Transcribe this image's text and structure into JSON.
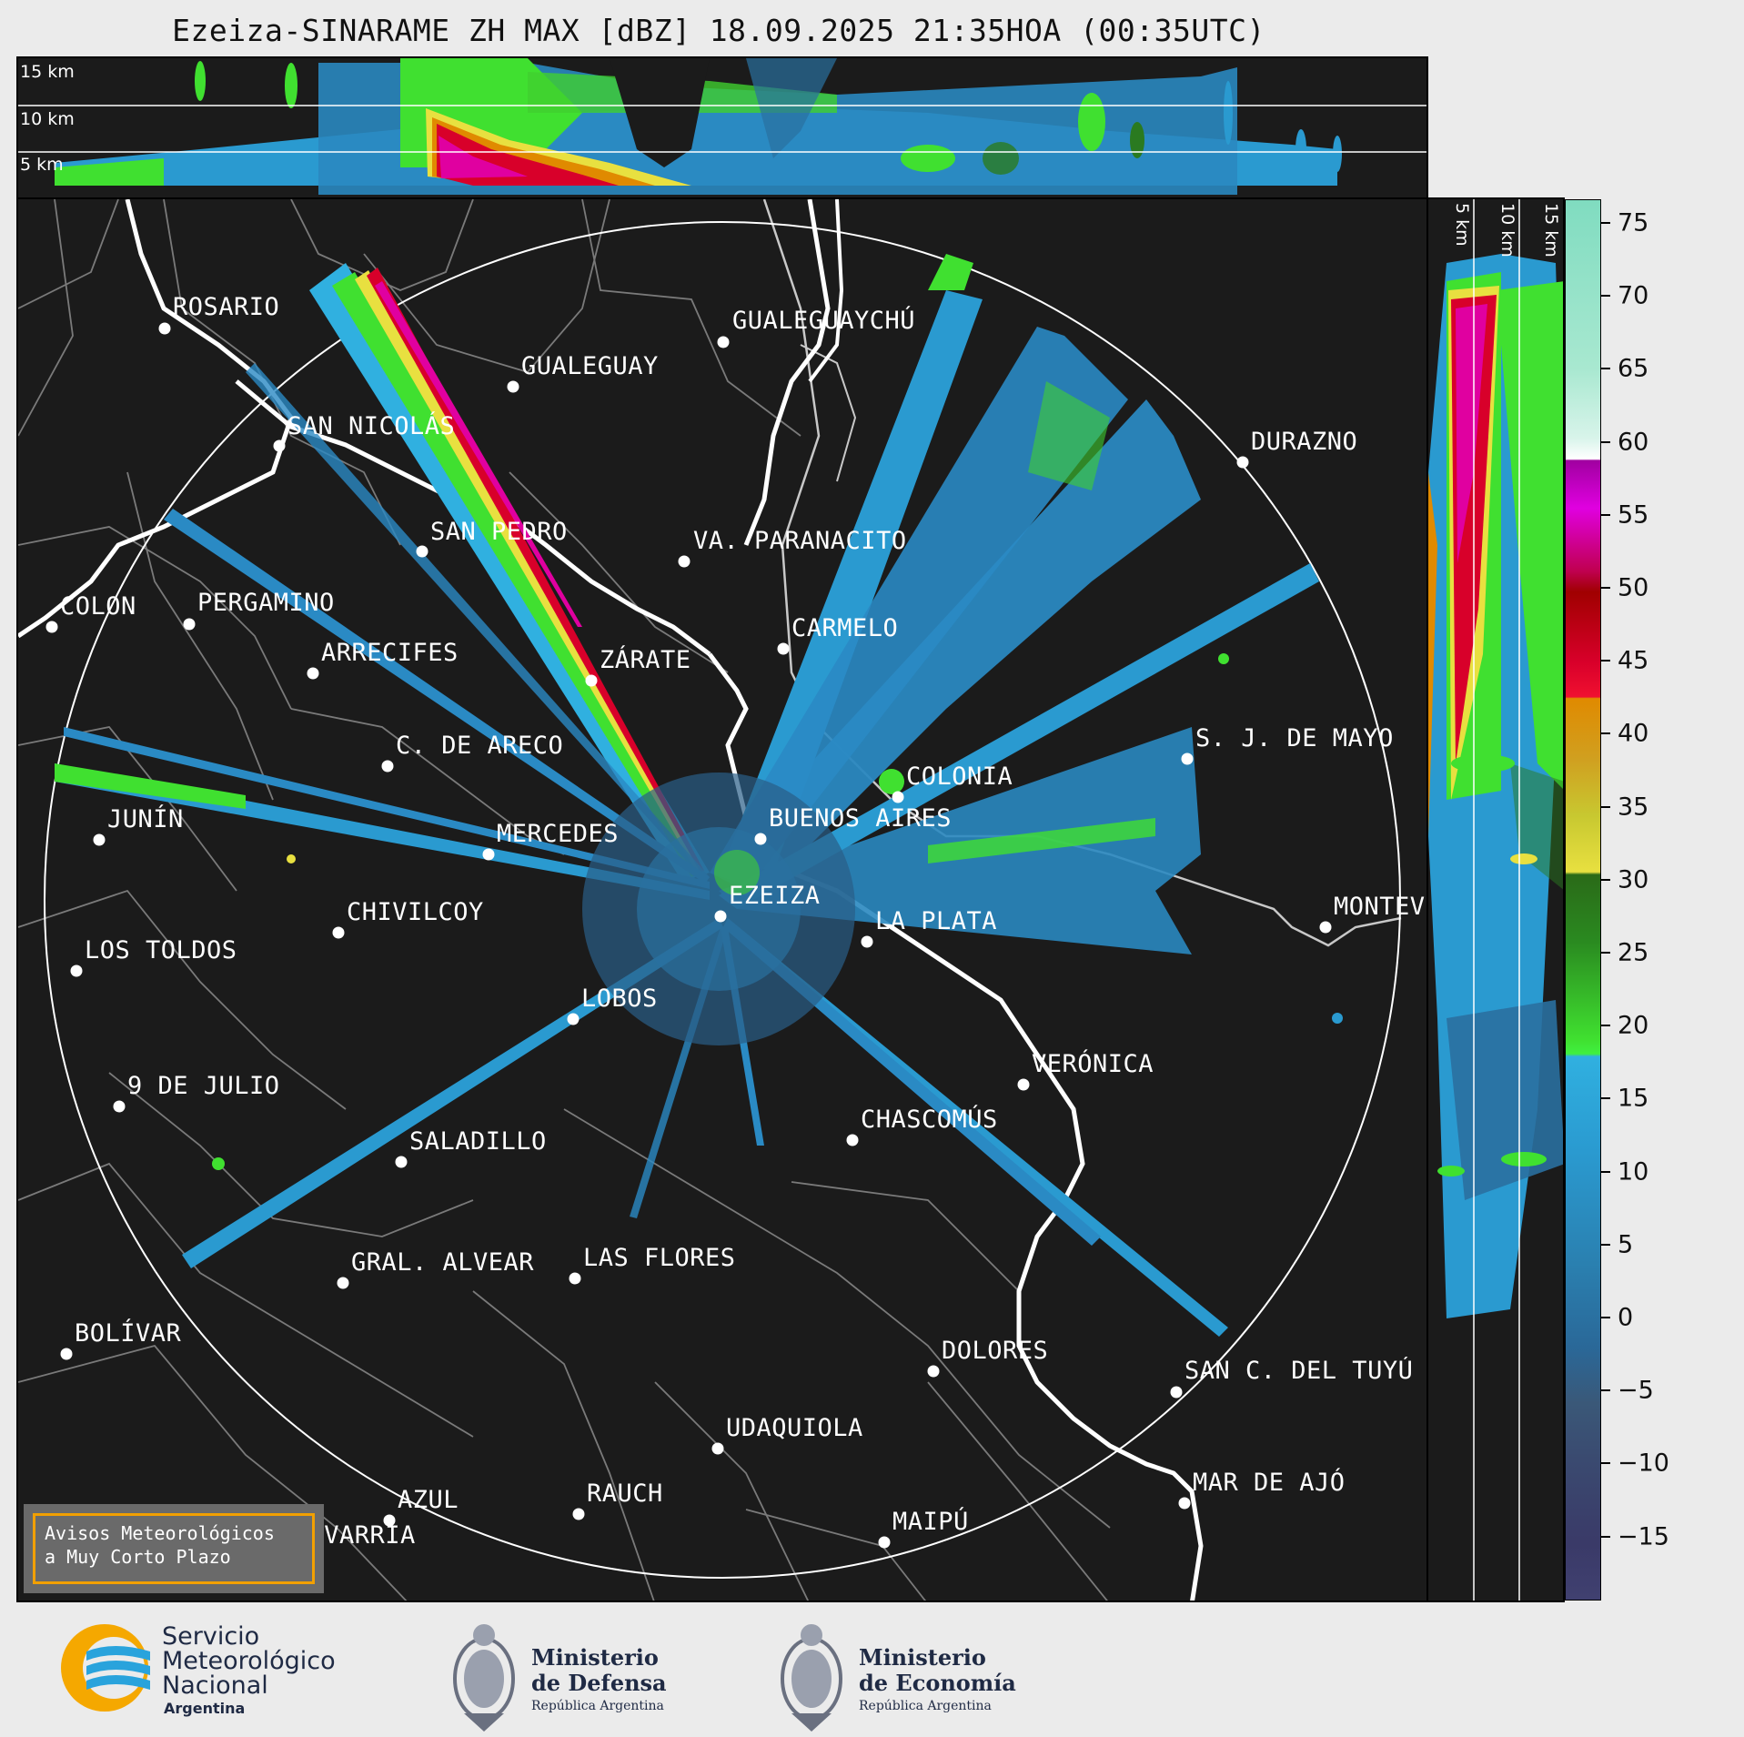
{
  "title": "Ezeiza-SINARAME ZH MAX [dBZ] 18.09.2025 21:35HOA (00:35UTC)",
  "top_panel": {
    "altitude_labels": [
      "15 km",
      "10 km",
      "5 km"
    ]
  },
  "side_panel": {
    "altitude_labels": [
      "5 km",
      "10 km",
      "15 km"
    ]
  },
  "colorbar": {
    "unit": "dBZ",
    "ticks": [
      "75",
      "70",
      "65",
      "60",
      "55",
      "50",
      "45",
      "40",
      "35",
      "30",
      "25",
      "20",
      "15",
      "10",
      "5",
      "0",
      "−5",
      "−10",
      "−15"
    ],
    "colors": {
      "cyan_green": "#80dcc0",
      "white": "#ffffff",
      "magenta": "#e000e0",
      "red": "#d8002a",
      "orange": "#e08a00",
      "yellow": "#e8e040",
      "dark_green": "#2a7a20",
      "green": "#40e030",
      "light_blue": "#30b0e0",
      "blue": "#2a80b0",
      "slate": "#3a5878",
      "navy": "#3a3a68"
    }
  },
  "cities": [
    {
      "name": "ROSARIO"
    },
    {
      "name": "GUALEGUAYCHÚ"
    },
    {
      "name": "GUALEGUAY"
    },
    {
      "name": "SAN NICOLÁS"
    },
    {
      "name": "DURAZNO"
    },
    {
      "name": "SAN PEDRO"
    },
    {
      "name": "VA. PARANACITO"
    },
    {
      "name": "COLON"
    },
    {
      "name": "PERGAMINO"
    },
    {
      "name": "CARMELO"
    },
    {
      "name": "ARRECIFES"
    },
    {
      "name": "ZÁRATE"
    },
    {
      "name": "S. J. DE MAYO"
    },
    {
      "name": "C. DE ARECO"
    },
    {
      "name": "COLONIA"
    },
    {
      "name": "JUNÍN"
    },
    {
      "name": "BUENOS AIRES"
    },
    {
      "name": "MERCEDES"
    },
    {
      "name": "EZEIZA"
    },
    {
      "name": "MONTEVIDEO"
    },
    {
      "name": "CHIVILCOY"
    },
    {
      "name": "LA PLATA"
    },
    {
      "name": "LOS TOLDOS"
    },
    {
      "name": "LOBOS"
    },
    {
      "name": "VERÓNICA"
    },
    {
      "name": "9 DE JULIO"
    },
    {
      "name": "CHASCOMÚS"
    },
    {
      "name": "SALADILLO"
    },
    {
      "name": "GRAL. ALVEAR"
    },
    {
      "name": "LAS FLORES"
    },
    {
      "name": "BOLÍVAR"
    },
    {
      "name": "DOLORES"
    },
    {
      "name": "SAN C. DEL TUYÚ"
    },
    {
      "name": "UDAQUIOLA"
    },
    {
      "name": "MAR DE AJÓ"
    },
    {
      "name": "AZUL"
    },
    {
      "name": "RAUCH"
    },
    {
      "name": "MAIPÚ"
    },
    {
      "name": "OLAVARRÍA"
    }
  ],
  "warning": {
    "line1": "Avisos Meteorológicos",
    "line2": "a Muy Corto Plazo"
  },
  "footer": {
    "smn": {
      "line1": "Servicio",
      "line2": "Meteorológico",
      "line3": "Nacional",
      "line4": "Argentina"
    },
    "defensa": {
      "line1": "Ministerio",
      "line2": "de Defensa",
      "line3": "República Argentina"
    },
    "economia": {
      "line1": "Ministerio",
      "line2": "de Economía",
      "line3": "República Argentina"
    }
  }
}
